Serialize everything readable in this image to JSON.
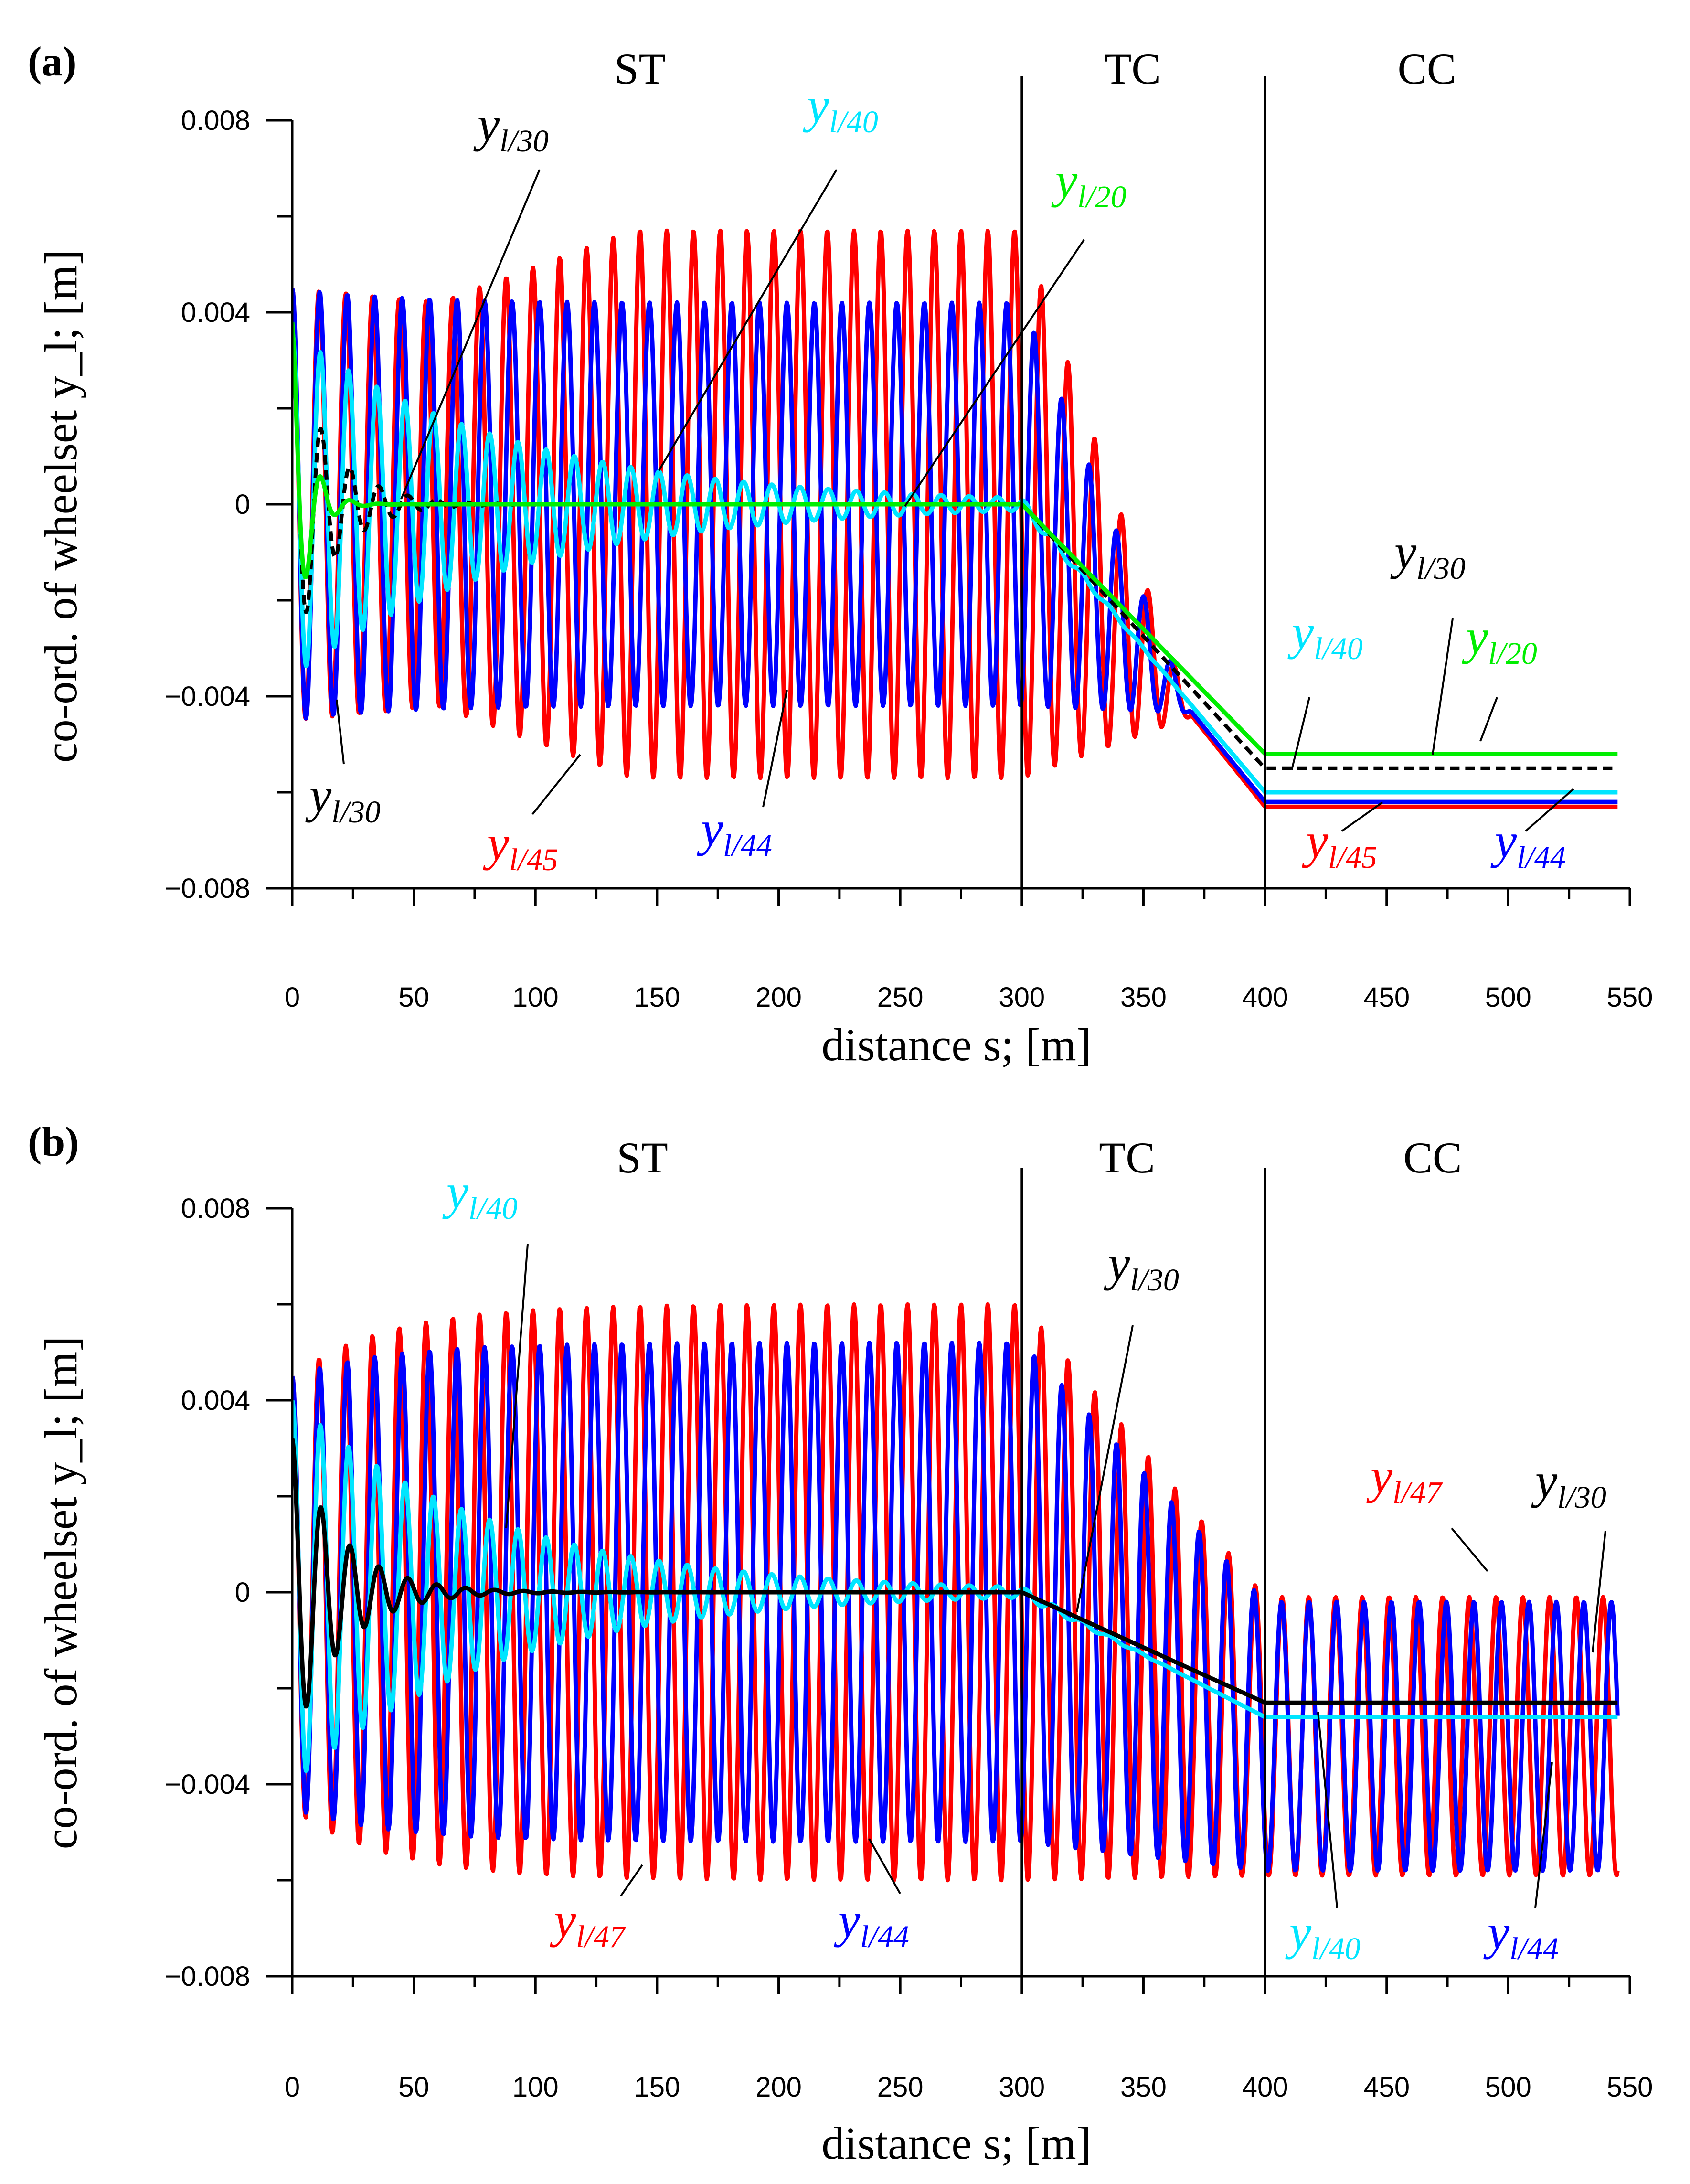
{
  "chart_data": [
    {
      "panel": "(a)",
      "type": "line",
      "xlabel": "distance s; [m]",
      "ylabel": "co-ord. of wheelset y_l; [m]",
      "xlim": [
        0,
        550
      ],
      "ylim": [
        -0.008,
        0.008
      ],
      "xticks": [
        "0",
        "50",
        "100",
        "150",
        "200",
        "250",
        "300",
        "350",
        "400",
        "450",
        "500",
        "550"
      ],
      "yticks": [
        "0.008",
        "0.004",
        "0",
        "−0.004",
        "−0.008"
      ],
      "regions": [
        {
          "label": "ST",
          "from": 0,
          "to": 300
        },
        {
          "label": "TC",
          "from": 300,
          "to": 400
        },
        {
          "label": "CC",
          "from": 400,
          "to": 550
        }
      ],
      "series": [
        {
          "name": "y_l/45",
          "color": "#ff0000",
          "start": 0.0045,
          "amplitude": 0.0055,
          "decay_to": 0.0042,
          "growth": 0.0057,
          "wavelength": 11.0,
          "final_value": -0.0063,
          "behaviour": "growing hunting oscillation"
        },
        {
          "name": "y_l/44",
          "color": "#0000ff",
          "start": 0.0045,
          "amplitude": 0.0042,
          "growth": 0.0042,
          "wavelength": 11.3,
          "final_value": -0.0062,
          "behaviour": "sustained hunting oscillation"
        },
        {
          "name": "y_l/40",
          "color": "#00e5ff",
          "start": 0.004,
          "amplitude": 0.0036,
          "decay": 0.011,
          "wavelength": 11.6,
          "final_value": -0.006,
          "behaviour": "slowly decaying oscillation"
        },
        {
          "name": "y_l/30",
          "color": "#000000",
          "dash": true,
          "start": 0.0045,
          "amplitude": 0.0032,
          "decay": 0.06,
          "wavelength": 11.9,
          "final_value": -0.0055,
          "behaviour": "rapidly decaying oscillation"
        },
        {
          "name": "y_l/20",
          "color": "#00ee00",
          "start": 0.004,
          "amplitude": 0.0038,
          "decay": 0.16,
          "wavelength": 12.0,
          "final_value": -0.0052,
          "behaviour": "very rapidly decaying oscillation"
        }
      ],
      "annotations": [
        {
          "base": "y",
          "sub": "l/30",
          "color": "#000000"
        },
        {
          "base": "y",
          "sub": "l/40",
          "color": "#00e5ff"
        },
        {
          "base": "y",
          "sub": "l/20",
          "color": "#00ee00"
        },
        {
          "base": "y",
          "sub": "l/30",
          "color": "#000000"
        },
        {
          "base": "y",
          "sub": "l/45",
          "color": "#ff0000"
        },
        {
          "base": "y",
          "sub": "l/44",
          "color": "#0000ff"
        },
        {
          "base": "y",
          "sub": "l/30",
          "color": "#000000"
        },
        {
          "base": "y",
          "sub": "l/40",
          "color": "#00e5ff"
        },
        {
          "base": "y",
          "sub": "l/20",
          "color": "#00ee00"
        },
        {
          "base": "y",
          "sub": "l/45",
          "color": "#ff0000"
        },
        {
          "base": "y",
          "sub": "l/44",
          "color": "#0000ff"
        }
      ]
    },
    {
      "panel": "(b)",
      "type": "line",
      "xlabel": "distance s; [m]",
      "ylabel": "co-ord. of wheelset y_l; [m]",
      "xlim": [
        0,
        550
      ],
      "ylim": [
        -0.008,
        0.008
      ],
      "xticks": [
        "0",
        "50",
        "100",
        "150",
        "200",
        "250",
        "300",
        "350",
        "400",
        "450",
        "500",
        "550"
      ],
      "yticks": [
        "0.008",
        "0.004",
        "0",
        "−0.004",
        "−0.008"
      ],
      "regions": [
        {
          "label": "ST",
          "from": 0,
          "to": 300
        },
        {
          "label": "TC",
          "from": 300,
          "to": 400
        },
        {
          "label": "CC",
          "from": 400,
          "to": 550
        }
      ],
      "series": [
        {
          "name": "y_l/47",
          "color": "#ff0000",
          "start": 0.0045,
          "amplitude": 0.006,
          "growth": 0.006,
          "wavelength": 11.0,
          "final_value": -0.003,
          "final_amplitude": 0.0029,
          "behaviour": "hunting oscillation persisting in curve"
        },
        {
          "name": "y_l/44",
          "color": "#0000ff",
          "start": 0.0045,
          "amplitude": 0.005,
          "growth": 0.0052,
          "wavelength": 11.3,
          "final_value": -0.003,
          "final_amplitude": 0.0028,
          "behaviour": "hunting oscillation persisting in curve"
        },
        {
          "name": "y_l/40",
          "color": "#00e5ff",
          "start": 0.004,
          "amplitude": 0.004,
          "decay": 0.012,
          "wavelength": 11.6,
          "final_value": -0.0026,
          "behaviour": "slowly decaying oscillation"
        },
        {
          "name": "y_l/30",
          "color": "#000000",
          "start": 0.0045,
          "amplitude": 0.0032,
          "decay": 0.05,
          "wavelength": 11.9,
          "final_value": -0.0023,
          "behaviour": "rapidly decaying oscillation"
        }
      ],
      "annotations": [
        {
          "base": "y",
          "sub": "l/40",
          "color": "#00e5ff"
        },
        {
          "base": "y",
          "sub": "l/30",
          "color": "#000000"
        },
        {
          "base": "y",
          "sub": "l/47",
          "color": "#ff0000"
        },
        {
          "base": "y",
          "sub": "l/30",
          "color": "#000000"
        },
        {
          "base": "y",
          "sub": "l/47",
          "color": "#ff0000"
        },
        {
          "base": "y",
          "sub": "l/44",
          "color": "#0000ff"
        },
        {
          "base": "y",
          "sub": "l/40",
          "color": "#00e5ff"
        },
        {
          "base": "y",
          "sub": "l/44",
          "color": "#0000ff"
        }
      ]
    }
  ]
}
